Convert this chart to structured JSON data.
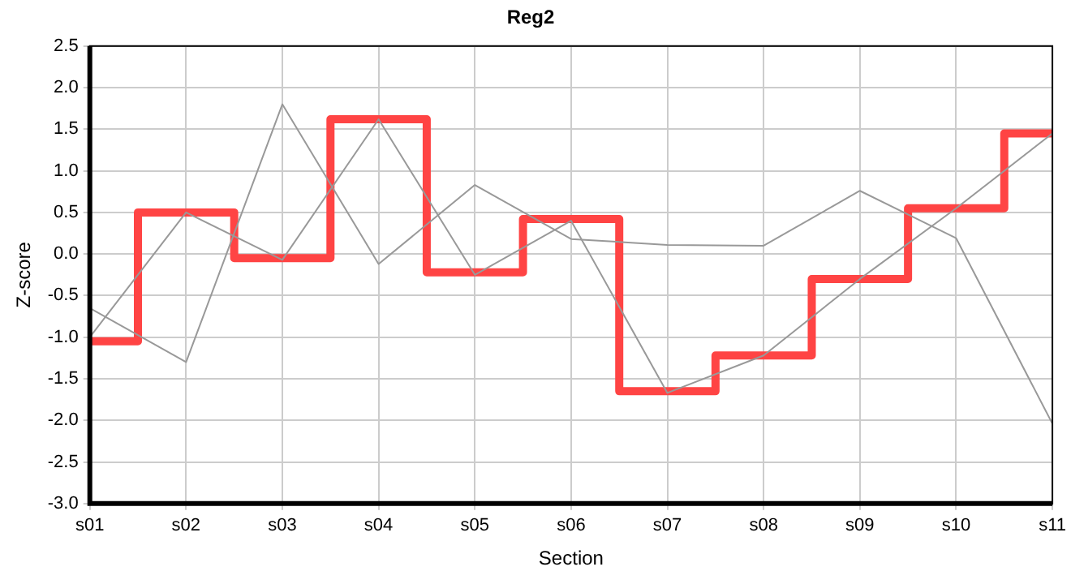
{
  "chart_data": {
    "type": "line",
    "title": "Reg2",
    "xlabel": "Section",
    "ylabel": "Z-score",
    "categories": [
      "s01",
      "s02",
      "s03",
      "s04",
      "s05",
      "s06",
      "s07",
      "s08",
      "s09",
      "s10",
      "s11"
    ],
    "series": [
      {
        "type": "line",
        "color": "#999999",
        "values": [
          -0.65,
          -1.3,
          1.8,
          -0.12,
          0.83,
          0.18,
          0.11,
          0.1,
          0.76,
          0.19,
          -2.04
        ]
      },
      {
        "type": "line",
        "color": "#999999",
        "values": [
          -1.0,
          0.5,
          -0.07,
          1.62,
          -0.25,
          0.4,
          -1.67,
          -1.22,
          -0.3,
          0.55,
          1.45
        ]
      },
      {
        "type": "step",
        "color": "#ff4444",
        "values": [
          -1.05,
          0.5,
          -0.05,
          1.62,
          -0.22,
          0.42,
          -1.65,
          -1.22,
          -0.3,
          0.55,
          1.45
        ]
      }
    ],
    "ylim": [
      -3.0,
      2.5
    ],
    "yticks": [
      {
        "value": -3,
        "label": "-3.0"
      },
      {
        "value": -2.5,
        "label": "-2.5"
      },
      {
        "value": -2,
        "label": "-2.0"
      },
      {
        "value": -1.5,
        "label": "-1.5"
      },
      {
        "value": -1,
        "label": "-1.0"
      },
      {
        "value": -0.5,
        "label": "-0.5"
      },
      {
        "value": 0,
        "label": "0.0"
      },
      {
        "value": 0.5,
        "label": "0.5"
      },
      {
        "value": 1,
        "label": "1.0"
      },
      {
        "value": 1.5,
        "label": "1.5"
      },
      {
        "value": 2,
        "label": "2.0"
      },
      {
        "value": 2.5,
        "label": "2.5"
      }
    ],
    "grid": true,
    "legend": false,
    "marker": "none"
  }
}
